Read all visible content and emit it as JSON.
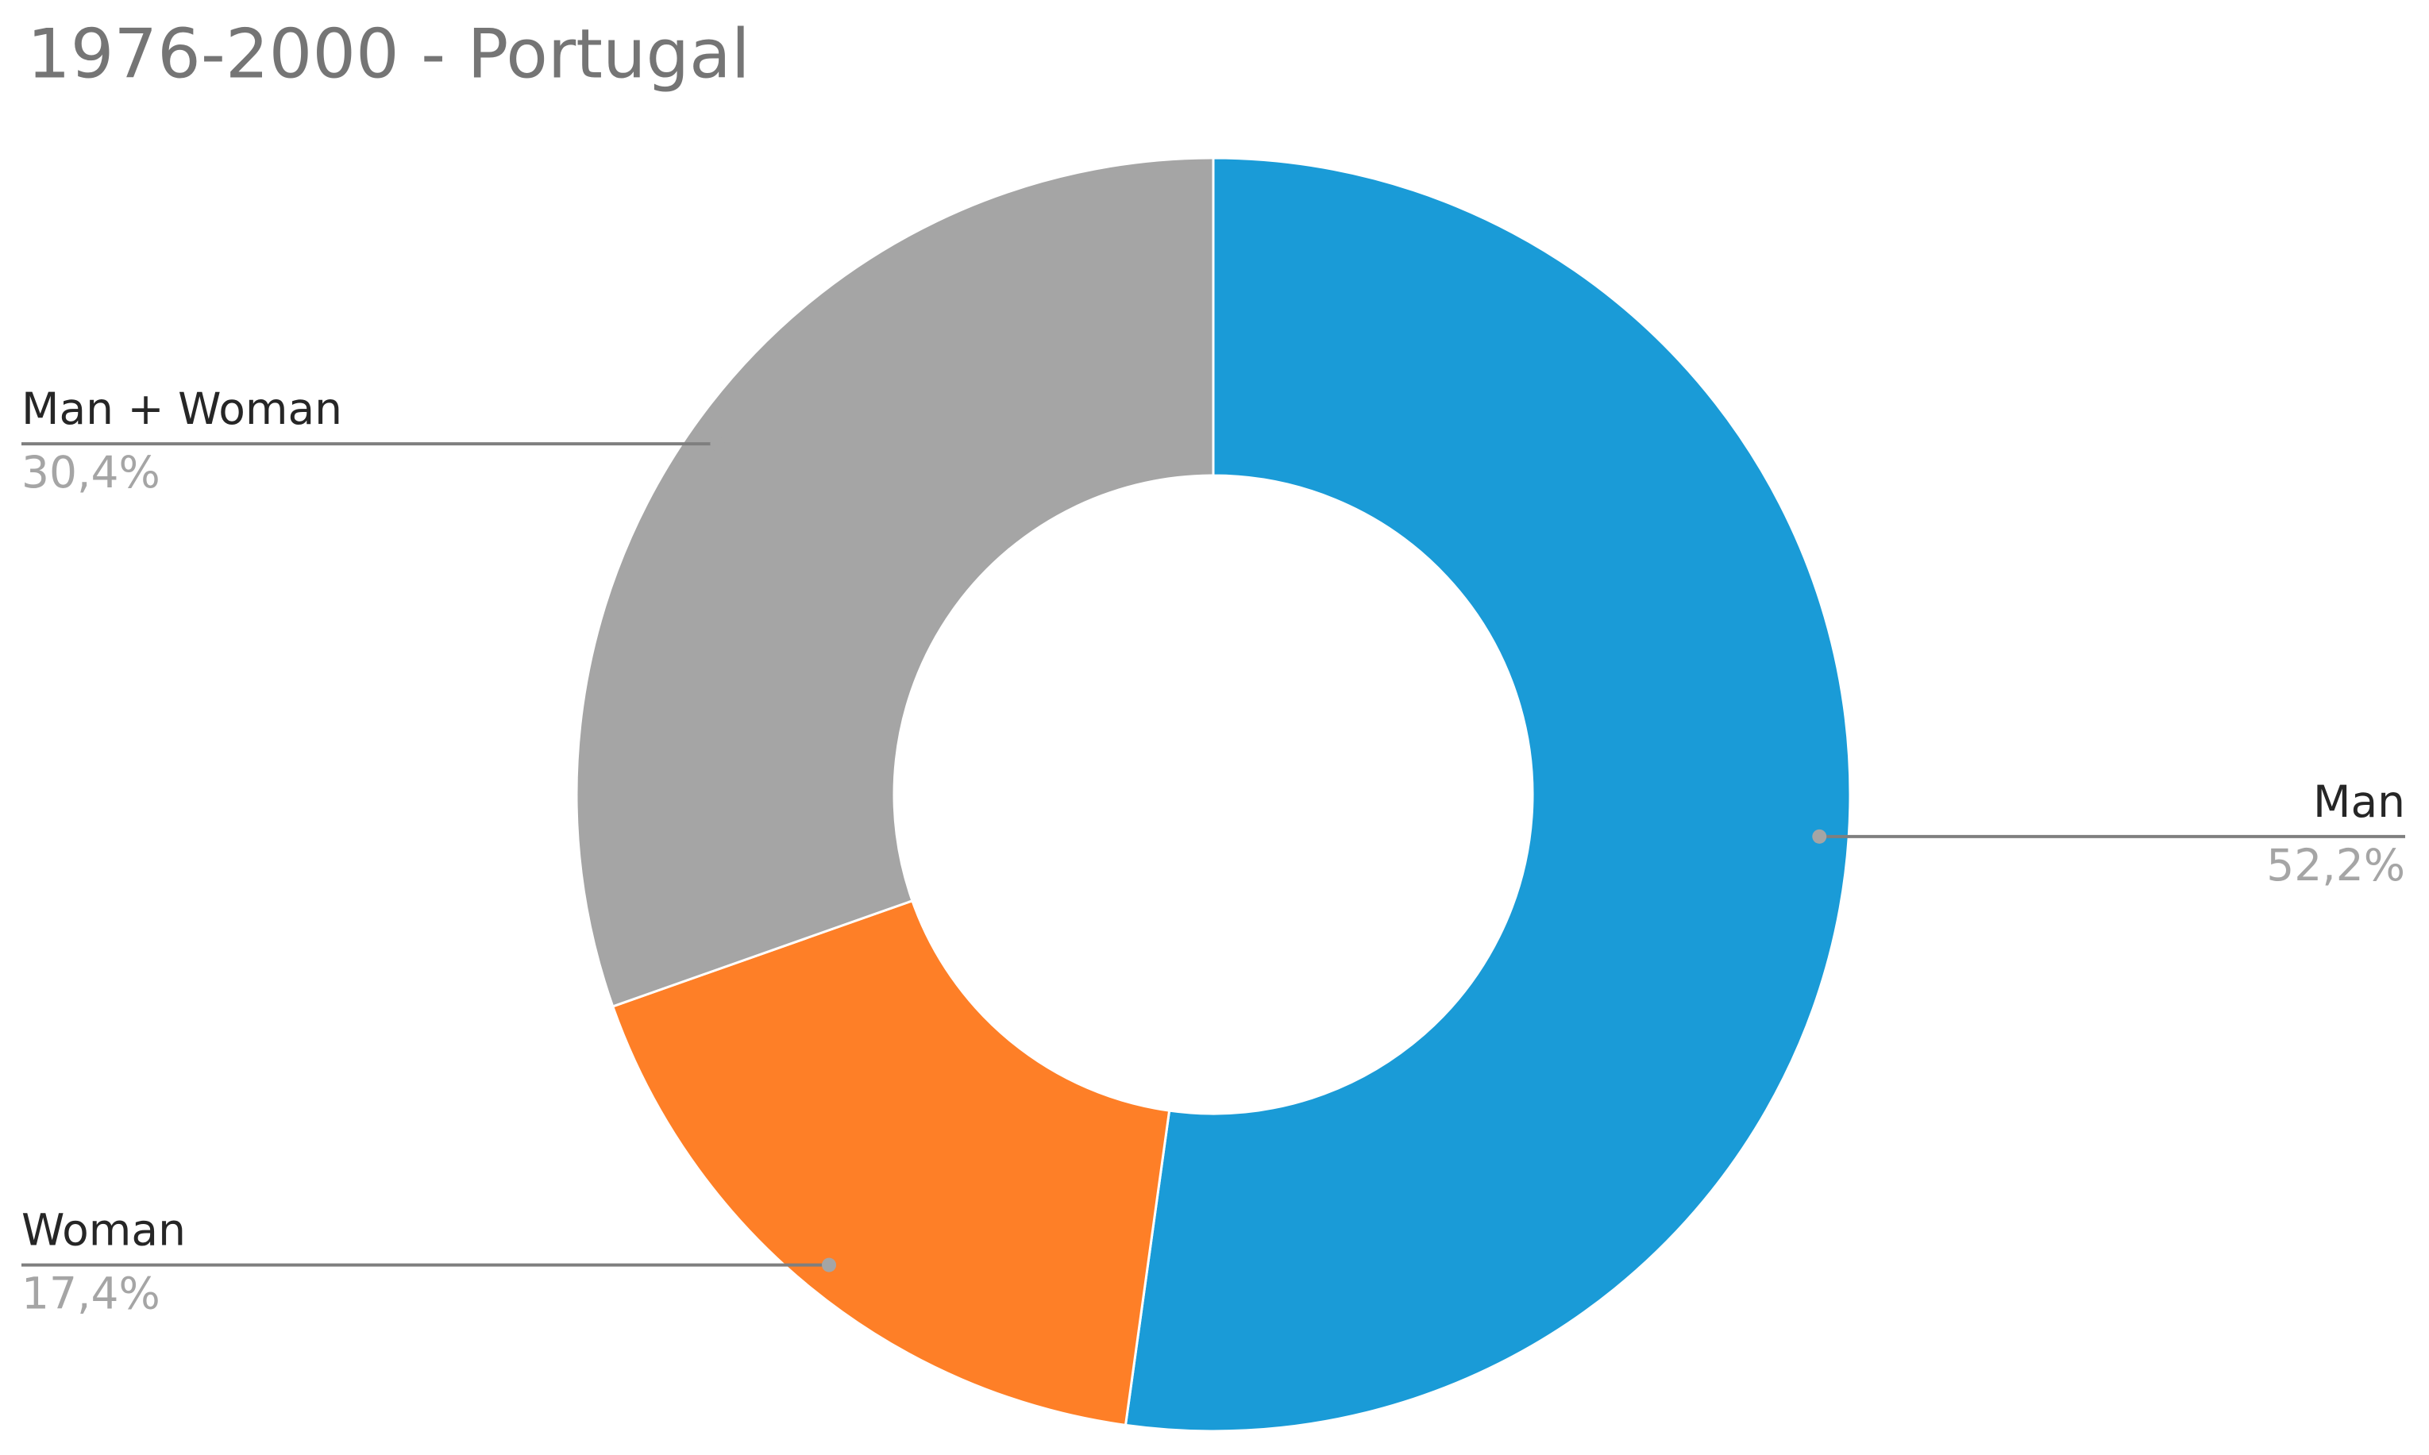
{
  "chart_data": {
    "type": "donut",
    "title": "1976-2000 - Portugal",
    "categories": [
      "Man",
      "Woman",
      "Man + Woman"
    ],
    "values": [
      52.2,
      17.4,
      30.4
    ],
    "value_labels": [
      "52,2%",
      "17,4%",
      "30,4%"
    ],
    "colors": [
      "#1a9bd7",
      "#fe7f27",
      "#a5a5a5"
    ]
  }
}
